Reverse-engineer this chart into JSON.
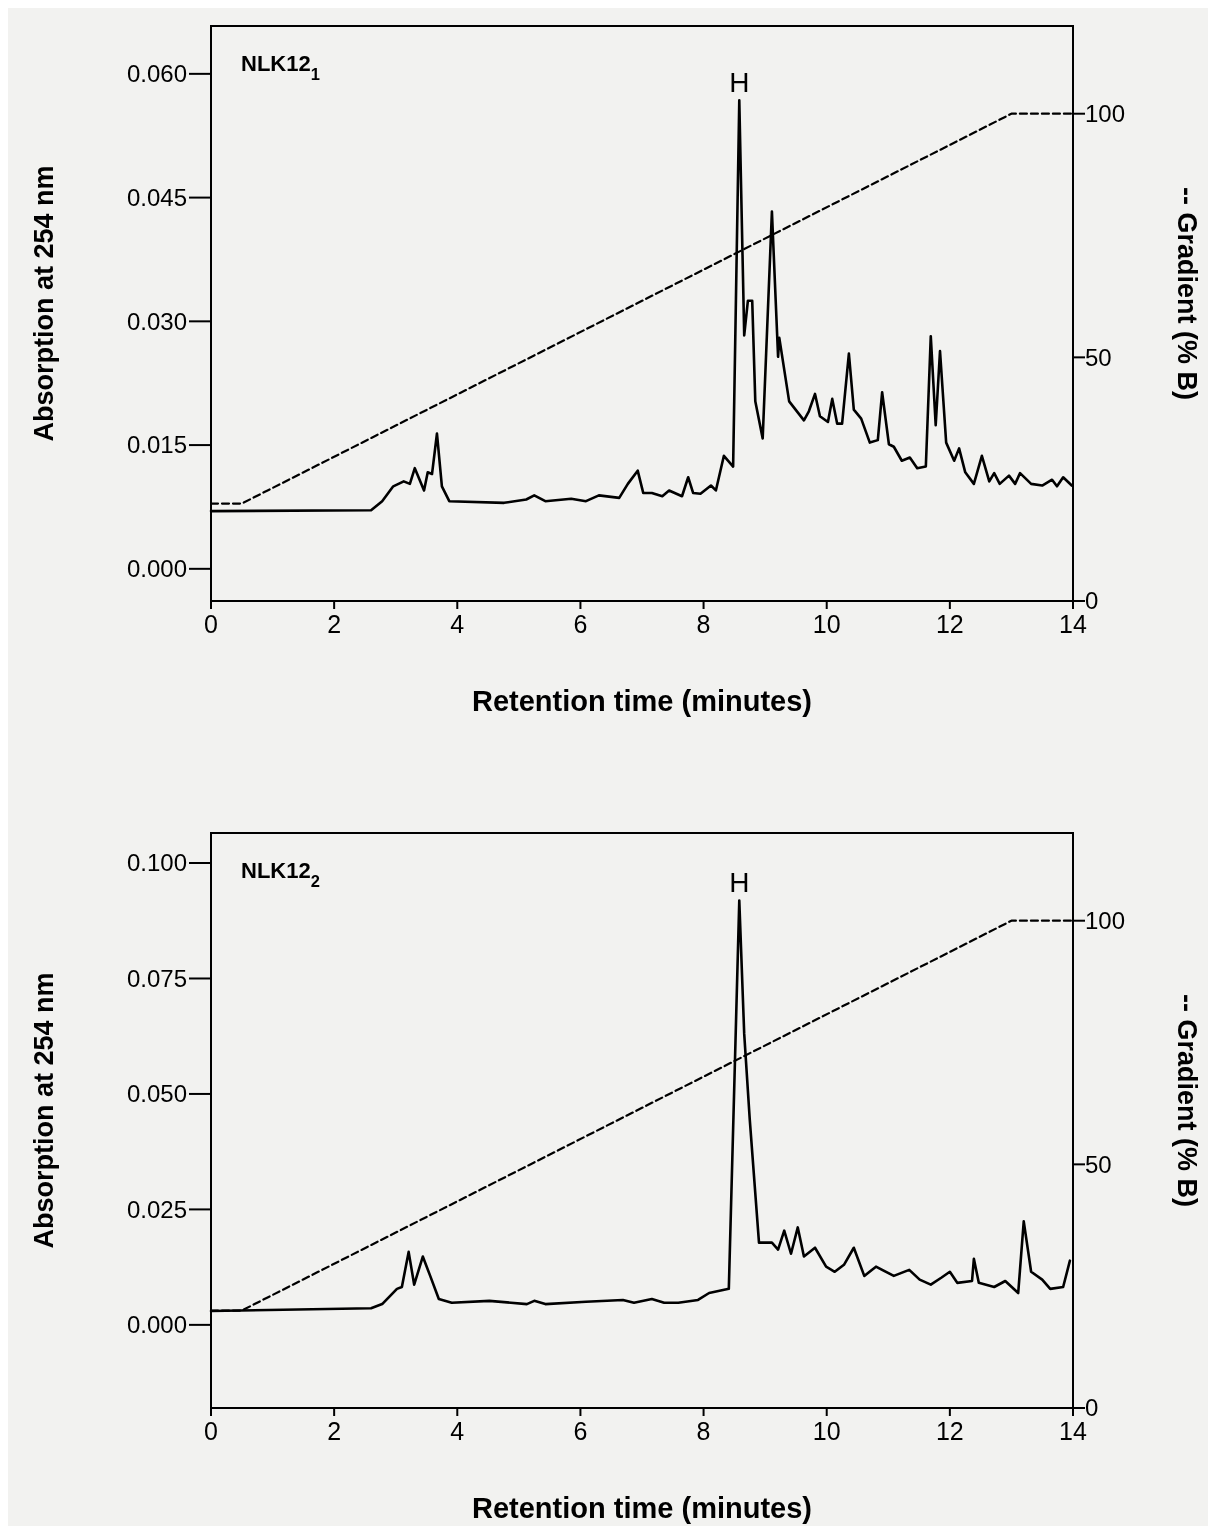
{
  "chart_data": [
    {
      "type": "line",
      "title": "NLK12$_{1}$",
      "xlabel": "Retention time (minutes)",
      "ylabel": "Absorption at 254 nm",
      "y2label": "-- Gradient (% B)",
      "xlim": [
        0,
        14
      ],
      "xticks": [
        0,
        2,
        4,
        6,
        8,
        10,
        12,
        14
      ],
      "ylim": [
        -0.0039,
        0.0658
      ],
      "yticks": [
        {
          "value": 0,
          "label": "0.000"
        },
        {
          "value": 0.015,
          "label": "0.015"
        },
        {
          "value": 0.03,
          "label": "0.030"
        },
        {
          "value": 0.045,
          "label": "0.045"
        },
        {
          "value": 0.06,
          "label": "0.060"
        }
      ],
      "y2lim": [
        0,
        118
      ],
      "y2ticks": [
        0,
        50,
        100
      ],
      "annotations": [
        "H"
      ],
      "series": [
        {
          "color": "#000000",
          "line_style": "solid",
          "x": [
            0,
            2.6,
            2.78,
            2.96,
            3.13,
            3.23,
            3.31,
            3.46,
            3.52,
            3.59,
            3.67,
            3.75,
            3.87,
            4.76,
            5.12,
            5.25,
            5.43,
            5.85,
            6.09,
            6.3,
            6.63,
            6.77,
            6.93,
            7.02,
            7.16,
            7.33,
            7.44,
            7.65,
            7.75,
            7.83,
            7.95,
            8.12,
            8.2,
            8.33,
            8.48,
            8.58,
            8.66,
            8.72,
            8.79,
            8.84,
            8.96,
            9.11,
            9.21,
            9.23,
            9.39,
            9.63,
            9.71,
            9.81,
            9.89,
            10.02,
            10.09,
            10.17,
            10.25,
            10.36,
            10.44,
            10.56,
            10.7,
            10.83,
            10.9,
            11.01,
            11.09,
            11.22,
            11.35,
            11.47,
            11.61,
            11.69,
            11.77,
            11.84,
            11.94,
            12.07,
            12.15,
            12.25,
            12.39,
            12.52,
            12.64,
            12.72,
            12.81,
            12.96,
            13.06,
            13.14,
            13.32,
            13.5,
            13.66,
            13.74,
            13.84,
            13.98
          ],
          "values": [
            0.007,
            0.0071,
            0.0082,
            0.01,
            0.0106,
            0.0103,
            0.0122,
            0.0095,
            0.0117,
            0.0115,
            0.0164,
            0.01,
            0.0082,
            0.008,
            0.0084,
            0.0089,
            0.0082,
            0.0085,
            0.0082,
            0.0089,
            0.0086,
            0.0103,
            0.0119,
            0.0092,
            0.0092,
            0.0088,
            0.0095,
            0.0088,
            0.0111,
            0.0092,
            0.0091,
            0.0101,
            0.0095,
            0.0137,
            0.0124,
            0.0568,
            0.0283,
            0.0325,
            0.0325,
            0.0203,
            0.0158,
            0.0433,
            0.0257,
            0.028,
            0.0203,
            0.018,
            0.0191,
            0.0212,
            0.0185,
            0.0178,
            0.0206,
            0.0176,
            0.0176,
            0.0261,
            0.0193,
            0.0182,
            0.0153,
            0.0156,
            0.0214,
            0.0151,
            0.0148,
            0.0131,
            0.0135,
            0.0122,
            0.0124,
            0.0282,
            0.0174,
            0.0264,
            0.0153,
            0.0131,
            0.0146,
            0.0117,
            0.0103,
            0.0137,
            0.0106,
            0.0116,
            0.0103,
            0.0113,
            0.0103,
            0.0116,
            0.0103,
            0.0101,
            0.0108,
            0.01,
            0.0111,
            0.0101
          ]
        },
        {
          "color": "#000000",
          "line_style": "dashed",
          "axis": "y2",
          "x": [
            0,
            0.5,
            13,
            14
          ],
          "values": [
            20,
            20,
            100,
            100
          ]
        }
      ]
    },
    {
      "type": "line",
      "title": "NLK12$_{2}$",
      "xlabel": "Retention time (minutes)",
      "ylabel": "Absorption at 254 nm",
      "y2label": "-- Gradient (% B)",
      "xlim": [
        0,
        14
      ],
      "xticks": [
        0,
        2,
        4,
        6,
        8,
        10,
        12,
        14
      ],
      "ylim": [
        -0.018,
        0.1065
      ],
      "yticks": [
        {
          "value": 0,
          "label": "0.000"
        },
        {
          "value": 0.025,
          "label": "0.025"
        },
        {
          "value": 0.05,
          "label": "0.050"
        },
        {
          "value": 0.075,
          "label": "0.075"
        },
        {
          "value": 0.1,
          "label": "0.100"
        }
      ],
      "y2lim": [
        0,
        118
      ],
      "y2ticks": [
        0,
        50,
        100
      ],
      "annotations": [
        "H"
      ],
      "series": [
        {
          "color": "#000000",
          "line_style": "solid",
          "x": [
            0,
            2.6,
            2.78,
            3.02,
            3.1,
            3.21,
            3.3,
            3.44,
            3.56,
            3.7,
            3.91,
            4.52,
            5.13,
            5.25,
            5.43,
            6.09,
            6.69,
            6.87,
            7.16,
            7.36,
            7.59,
            7.91,
            8.09,
            8.41,
            8.58,
            8.66,
            8.75,
            8.9,
            9.11,
            9.21,
            9.31,
            9.42,
            9.53,
            9.63,
            9.81,
            9.99,
            10.13,
            10.28,
            10.44,
            10.61,
            10.8,
            11.09,
            11.34,
            11.51,
            11.69,
            11.86,
            12,
            12.12,
            12.36,
            12.39,
            12.47,
            12.72,
            12.9,
            13.11,
            13.2,
            13.32,
            13.5,
            13.63,
            13.84,
            13.95
          ],
          "values": [
            0.003,
            0.0036,
            0.0045,
            0.0078,
            0.0082,
            0.0158,
            0.0087,
            0.0148,
            0.0106,
            0.0056,
            0.0048,
            0.0052,
            0.0045,
            0.0052,
            0.0045,
            0.005,
            0.0054,
            0.0048,
            0.0056,
            0.0048,
            0.0048,
            0.0054,
            0.0069,
            0.0078,
            0.0919,
            0.063,
            0.0445,
            0.0178,
            0.0178,
            0.0163,
            0.0204,
            0.0154,
            0.0211,
            0.0148,
            0.0167,
            0.0126,
            0.0115,
            0.013,
            0.0167,
            0.0106,
            0.0126,
            0.0106,
            0.0119,
            0.0098,
            0.0087,
            0.0102,
            0.0115,
            0.0091,
            0.0095,
            0.0143,
            0.0091,
            0.0082,
            0.0095,
            0.0069,
            0.0224,
            0.0115,
            0.0098,
            0.0078,
            0.0082,
            0.0139
          ]
        },
        {
          "color": "#000000",
          "line_style": "dashed",
          "axis": "y2",
          "x": [
            0,
            0.5,
            13,
            14
          ],
          "values": [
            20,
            20,
            100,
            100
          ]
        }
      ]
    }
  ]
}
